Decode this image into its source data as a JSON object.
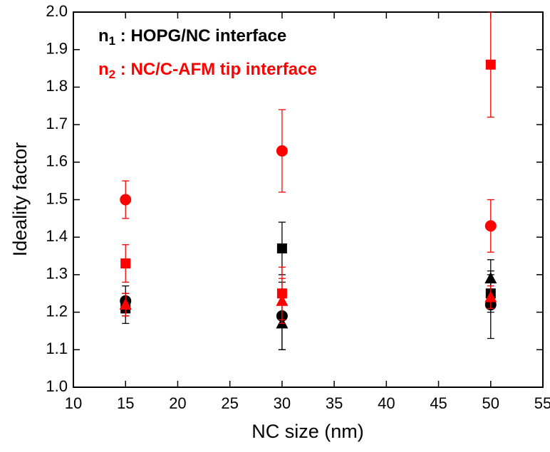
{
  "chart_data": {
    "type": "scatter",
    "x_label": "NC size (nm)",
    "y_label": "Ideality factor",
    "x": [
      15,
      30,
      50
    ],
    "series": [
      {
        "color": "#000000",
        "marker": "square",
        "values": [
          1.21,
          1.37,
          1.25
        ],
        "errors": [
          0.04,
          0.07,
          0.05
        ]
      },
      {
        "color": "#000000",
        "marker": "circle",
        "values": [
          1.23,
          1.19,
          1.22
        ],
        "errors": [
          0.04,
          0.09,
          0.09
        ]
      },
      {
        "color": "#000000",
        "marker": "triangle",
        "values": [
          1.22,
          1.17,
          1.29
        ],
        "errors": [
          0.03,
          0.07,
          0.05
        ]
      },
      {
        "color": "#ff0000",
        "marker": "square",
        "values": [
          1.33,
          1.25,
          1.86
        ],
        "errors": [
          0.05,
          0.07,
          0.14
        ]
      },
      {
        "color": "#ff0000",
        "marker": "circle",
        "values": [
          1.5,
          1.63,
          1.43
        ],
        "errors": [
          0.05,
          0.11,
          0.07
        ]
      },
      {
        "color": "#ff0000",
        "marker": "triangle",
        "values": [
          1.22,
          1.23,
          1.24
        ],
        "errors": [
          0.03,
          0.06,
          0.03
        ]
      }
    ],
    "annotations": [
      {
        "symbol": "n",
        "subscript": "1",
        "text": " : HOPG/NC interface",
        "color": "#000000"
      },
      {
        "symbol": "n",
        "subscript": "2",
        "text": " : NC/C-AFM tip interface",
        "color": "#ff0000"
      }
    ],
    "xlim": [
      10,
      55
    ],
    "xticks": [
      10,
      15,
      20,
      25,
      30,
      35,
      40,
      45,
      50,
      55
    ],
    "ylim": [
      1,
      2
    ],
    "yticks": [
      {
        "value": 1,
        "label": "1.0"
      },
      1.1,
      1.2,
      1.3,
      1.4,
      1.5,
      1.6,
      1.7,
      1.8,
      1.9,
      {
        "value": 2,
        "label": "2.0"
      }
    ]
  }
}
